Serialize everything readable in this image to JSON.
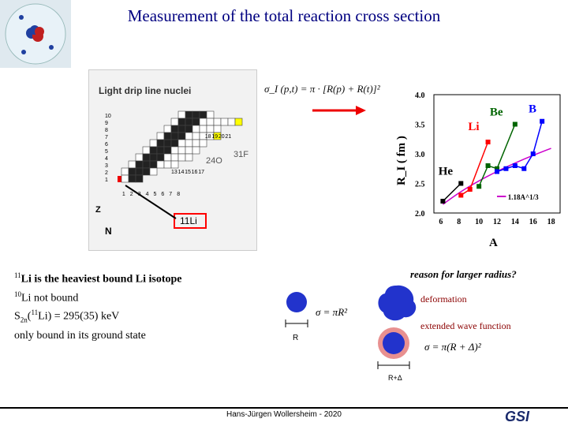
{
  "title": "Measurement of the total reaction cross section",
  "chart_title": "Light drip line nuclei",
  "chart_axis_n": "N",
  "chart_axis_z": "Z",
  "z_ticks": [
    "1",
    "2",
    "3",
    "4",
    "5",
    "6",
    "7",
    "8",
    "9",
    "10"
  ],
  "n_ticks": [
    "1",
    "2",
    "3",
    "4",
    "5",
    "6",
    "7",
    "8"
  ],
  "extra_labels": [
    "13",
    "14",
    "15",
    "16",
    "17",
    "18",
    "19",
    "20",
    "21"
  ],
  "label_24O": "24O",
  "label_31F": "31F",
  "label_11Li": "11Li",
  "formula_top": "σ_I (p,t) = π · [R(p) + R(t)]²",
  "radius_chart": {
    "type": "line",
    "ylabel": "R_I ( fm )",
    "xlabel": "A",
    "x_ticks": [
      "6",
      "8",
      "10",
      "12",
      "14",
      "16",
      "18"
    ],
    "y_ticks": [
      "2.0",
      "2.5",
      "3.0",
      "3.5",
      "4.0"
    ],
    "legend": "1.18A^1/3",
    "series_labels": [
      "He",
      "Li",
      "Be",
      "B"
    ],
    "series": [
      {
        "name": "He",
        "x": [
          6,
          8
        ],
        "y": [
          2.2,
          2.5
        ]
      },
      {
        "name": "Li",
        "x": [
          8,
          9,
          11
        ],
        "y": [
          2.3,
          2.4,
          3.2
        ]
      },
      {
        "name": "Be",
        "x": [
          10,
          11,
          12,
          14
        ],
        "y": [
          2.45,
          2.8,
          2.75,
          3.5
        ]
      },
      {
        "name": "B",
        "x": [
          12,
          13,
          14,
          15,
          16,
          17
        ],
        "y": [
          2.7,
          2.75,
          2.8,
          2.75,
          3.0,
          3.55
        ]
      }
    ]
  },
  "notes": {
    "line1_pre": "11",
    "line1_text": "Li is the heaviest bound Li isotope",
    "line2_pre": "10",
    "line2_text": "Li not bound",
    "line3_s": "S",
    "line3_sub": "2n",
    "line3_mid": "(",
    "line3_sup": "11",
    "line3_end": "Li) = 295(35) keV",
    "line4": "only bound in its ground state"
  },
  "reason": "reason for larger radius?",
  "deformation": "deformation",
  "extended": "extended wave function",
  "formula_r": "σ = πR²",
  "label_r": "R",
  "formula_rd": "σ = π(R + Δ)²",
  "label_rd": "R+Δ",
  "footer": "Hans-Jürgen Wollersheim - 2020",
  "gsi": "GSI",
  "colors": {
    "title": "#000080",
    "he": "#000000",
    "li": "#ff0000",
    "be": "#006400",
    "b": "#0000ff",
    "fit": "#cc00cc"
  }
}
